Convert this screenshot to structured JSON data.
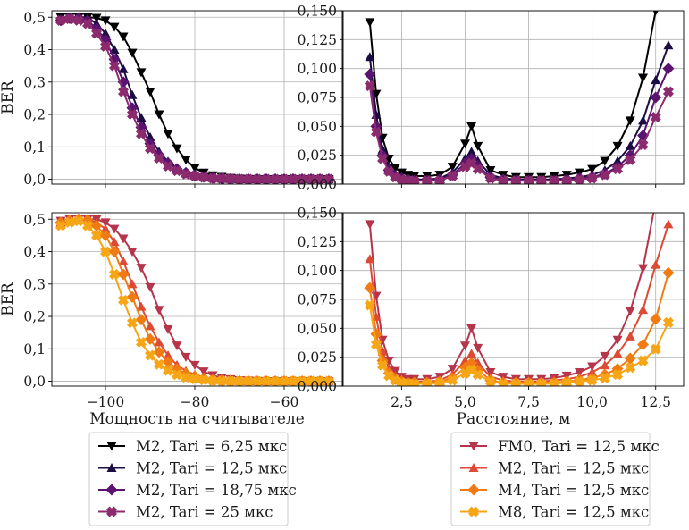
{
  "chart_data": [
    {
      "type": "line",
      "panel": "top-left",
      "xlabel": "",
      "ylabel": "BER",
      "xlim": [
        -112,
        -47
      ],
      "ylim": [
        -0.015,
        0.52
      ],
      "xticks": [
        -100,
        -80,
        -60
      ],
      "xtick_labels": [
        "",
        "",
        ""
      ],
      "yticks": [
        0,
        0.1,
        0.2,
        0.3,
        0.4,
        0.5
      ],
      "ytick_labels": [
        "0,0",
        "0,1",
        "0,2",
        "0,3",
        "0,4",
        "0,5"
      ],
      "grid": true,
      "x": [
        -110,
        -108,
        -106,
        -104,
        -102,
        -100,
        -98,
        -96,
        -94,
        -92,
        -90,
        -88,
        -86,
        -84,
        -82,
        -80,
        -78,
        -76,
        -74,
        -72,
        -70,
        -68,
        -66,
        -64,
        -62,
        -60,
        -58,
        -56,
        -54,
        -52,
        -50
      ],
      "series": [
        {
          "name": "M2, Tari = 6,25 мкс",
          "color": "#000000",
          "marker": "triangle-down",
          "values": [
            0.5,
            0.5,
            0.5,
            0.5,
            0.498,
            0.49,
            0.47,
            0.44,
            0.39,
            0.33,
            0.27,
            0.2,
            0.14,
            0.095,
            0.06,
            0.035,
            0.02,
            0.012,
            0.007,
            0.004,
            0.002,
            0.001,
            0,
            0,
            0,
            0,
            0,
            0,
            0,
            0,
            0
          ]
        },
        {
          "name": "M2, Tari = 12,5 мкс",
          "color": "#1b0c41",
          "marker": "triangle-up",
          "values": [
            0.495,
            0.5,
            0.5,
            0.498,
            0.48,
            0.45,
            0.4,
            0.34,
            0.26,
            0.19,
            0.13,
            0.085,
            0.055,
            0.035,
            0.02,
            0.012,
            0.007,
            0.004,
            0.002,
            0.001,
            0,
            0,
            0,
            0,
            0,
            0,
            0,
            0,
            0,
            0,
            0
          ]
        },
        {
          "name": "M2, Tari = 18,75 мкс",
          "color": "#5a1370",
          "marker": "diamond",
          "values": [
            0.49,
            0.497,
            0.498,
            0.49,
            0.465,
            0.43,
            0.37,
            0.3,
            0.22,
            0.16,
            0.11,
            0.075,
            0.05,
            0.032,
            0.02,
            0.012,
            0.007,
            0.004,
            0.002,
            0.001,
            0,
            0,
            0,
            0,
            0,
            0,
            0,
            0,
            0,
            0,
            0
          ]
        },
        {
          "name": "M2, Tari = 25 мкс",
          "color": "#8c2a6e",
          "marker": "x",
          "values": [
            0.49,
            0.495,
            0.49,
            0.48,
            0.45,
            0.41,
            0.35,
            0.27,
            0.2,
            0.14,
            0.095,
            0.065,
            0.04,
            0.026,
            0.016,
            0.01,
            0.006,
            0.003,
            0.002,
            0.001,
            0,
            0,
            0,
            0,
            0,
            0,
            0,
            0,
            0,
            0,
            0
          ]
        }
      ]
    },
    {
      "type": "line",
      "panel": "top-right",
      "xlabel": "",
      "ylabel": "",
      "xlim": [
        0.2,
        13.6
      ],
      "ylim": [
        0,
        0.15
      ],
      "xticks": [
        2.5,
        5.0,
        7.5,
        10.0,
        12.5
      ],
      "xtick_labels": [
        "",
        "",
        "",
        "",
        ""
      ],
      "yticks": [
        0,
        0.025,
        0.05,
        0.075,
        0.1,
        0.125,
        0.15
      ],
      "ytick_labels": [
        "0,000",
        "0,025",
        "0,050",
        "0,075",
        "0,100",
        "0,125",
        "0,150"
      ],
      "grid": true,
      "x": [
        1.25,
        1.5,
        1.75,
        2.0,
        2.25,
        2.5,
        2.75,
        3.0,
        3.5,
        4.0,
        4.5,
        5.0,
        5.25,
        5.5,
        6.0,
        6.5,
        7.0,
        7.5,
        8.0,
        8.5,
        9.0,
        9.5,
        10.0,
        10.5,
        11.0,
        11.5,
        12.0,
        12.5,
        13.0
      ],
      "series": [
        {
          "name": "M2, Tari = 6,25 мкс",
          "color": "#000000",
          "marker": "triangle-down",
          "values": [
            0.14,
            0.078,
            0.04,
            0.022,
            0.014,
            0.01,
            0.008,
            0.007,
            0.007,
            0.008,
            0.015,
            0.035,
            0.05,
            0.033,
            0.012,
            0.008,
            0.006,
            0.006,
            0.006,
            0.007,
            0.008,
            0.01,
            0.013,
            0.02,
            0.033,
            0.055,
            0.092,
            0.15,
            0.2
          ]
        },
        {
          "name": "M2, Tari = 12,5 мкс",
          "color": "#1b0c41",
          "marker": "triangle-up",
          "values": [
            0.11,
            0.06,
            0.03,
            0.015,
            0.009,
            0.006,
            0.005,
            0.004,
            0.004,
            0.005,
            0.01,
            0.022,
            0.028,
            0.02,
            0.008,
            0.005,
            0.004,
            0.004,
            0.004,
            0.004,
            0.005,
            0.006,
            0.008,
            0.012,
            0.02,
            0.033,
            0.055,
            0.09,
            0.12
          ]
        },
        {
          "name": "M2, Tari = 18,75 мкс",
          "color": "#5a1370",
          "marker": "diamond",
          "values": [
            0.095,
            0.05,
            0.025,
            0.012,
            0.007,
            0.005,
            0.004,
            0.003,
            0.003,
            0.004,
            0.008,
            0.018,
            0.022,
            0.016,
            0.006,
            0.004,
            0.003,
            0.003,
            0.003,
            0.003,
            0.004,
            0.005,
            0.006,
            0.009,
            0.015,
            0.025,
            0.042,
            0.075,
            0.1
          ]
        },
        {
          "name": "M2, Tari = 25 мкс",
          "color": "#8c2a6e",
          "marker": "x",
          "values": [
            0.085,
            0.045,
            0.022,
            0.011,
            0.006,
            0.004,
            0.003,
            0.003,
            0.003,
            0.003,
            0.007,
            0.015,
            0.018,
            0.013,
            0.005,
            0.003,
            0.003,
            0.003,
            0.003,
            0.003,
            0.003,
            0.004,
            0.005,
            0.008,
            0.013,
            0.021,
            0.034,
            0.058,
            0.08
          ]
        }
      ]
    },
    {
      "type": "line",
      "panel": "bottom-left",
      "xlabel": "Мощность на считывателе",
      "ylabel": "BER",
      "xlim": [
        -112,
        -47
      ],
      "ylim": [
        -0.015,
        0.52
      ],
      "xticks": [
        -100,
        -80,
        -60
      ],
      "xtick_labels": [
        "−100",
        "−80",
        "−60"
      ],
      "yticks": [
        0,
        0.1,
        0.2,
        0.3,
        0.4,
        0.5
      ],
      "ytick_labels": [
        "0,0",
        "0,1",
        "0,2",
        "0,3",
        "0,4",
        "0,5"
      ],
      "grid": true,
      "x": [
        -110,
        -108,
        -106,
        -104,
        -102,
        -100,
        -98,
        -96,
        -94,
        -92,
        -90,
        -88,
        -86,
        -84,
        -82,
        -80,
        -78,
        -76,
        -74,
        -72,
        -70,
        -68,
        -66,
        -64,
        -62,
        -60,
        -58,
        -56,
        -54,
        -52,
        -50
      ],
      "series": [
        {
          "name": "FM0, Tari = 12,5 мкс",
          "color": "#b5354b",
          "marker": "triangle-down",
          "values": [
            0.495,
            0.5,
            0.5,
            0.5,
            0.5,
            0.49,
            0.47,
            0.44,
            0.4,
            0.35,
            0.29,
            0.22,
            0.16,
            0.11,
            0.075,
            0.05,
            0.03,
            0.018,
            0.01,
            0.006,
            0.003,
            0.002,
            0.001,
            0,
            0,
            0,
            0,
            0,
            0,
            0,
            0
          ]
        },
        {
          "name": "M2, Tari = 12,5 мкс",
          "color": "#dd4a35",
          "marker": "triangle-up",
          "values": [
            0.49,
            0.5,
            0.5,
            0.5,
            0.49,
            0.47,
            0.43,
            0.37,
            0.3,
            0.23,
            0.17,
            0.12,
            0.08,
            0.05,
            0.032,
            0.02,
            0.012,
            0.007,
            0.004,
            0.002,
            0.001,
            0,
            0,
            0,
            0,
            0,
            0,
            0,
            0,
            0,
            0
          ]
        },
        {
          "name": "M4, Tari = 12,5 мкс",
          "color": "#f07b12",
          "marker": "diamond",
          "values": [
            0.49,
            0.497,
            0.5,
            0.498,
            0.48,
            0.45,
            0.4,
            0.33,
            0.26,
            0.19,
            0.13,
            0.09,
            0.06,
            0.038,
            0.024,
            0.015,
            0.009,
            0.005,
            0.003,
            0.002,
            0.001,
            0,
            0,
            0,
            0,
            0,
            0,
            0,
            0,
            0,
            0
          ]
        },
        {
          "name": "M8, Tari = 12,5 мкс",
          "color": "#f6a514",
          "marker": "x",
          "values": [
            0.48,
            0.49,
            0.495,
            0.48,
            0.45,
            0.4,
            0.33,
            0.25,
            0.18,
            0.12,
            0.08,
            0.052,
            0.033,
            0.02,
            0.012,
            0.007,
            0.004,
            0.002,
            0.001,
            0,
            0,
            0,
            0,
            0,
            0,
            0,
            0,
            0,
            0,
            0,
            0
          ]
        }
      ]
    },
    {
      "type": "line",
      "panel": "bottom-right",
      "xlabel": "Расстояние, м",
      "ylabel": "",
      "xlim": [
        0.2,
        13.6
      ],
      "ylim": [
        0,
        0.15
      ],
      "xticks": [
        2.5,
        5.0,
        7.5,
        10.0,
        12.5
      ],
      "xtick_labels": [
        "2,5",
        "5,0",
        "7,5",
        "10,0",
        "12,5"
      ],
      "yticks": [
        0,
        0.025,
        0.05,
        0.075,
        0.1,
        0.125,
        0.15
      ],
      "ytick_labels": [
        "0,000",
        "0,025",
        "0,050",
        "0,075",
        "0,100",
        "0,125",
        "0,150"
      ],
      "grid": true,
      "x": [
        1.25,
        1.5,
        1.75,
        2.0,
        2.25,
        2.5,
        2.75,
        3.0,
        3.5,
        4.0,
        4.5,
        5.0,
        5.25,
        5.5,
        6.0,
        6.5,
        7.0,
        7.5,
        8.0,
        8.5,
        9.0,
        9.5,
        10.0,
        10.5,
        11.0,
        11.5,
        12.0,
        12.5,
        13.0
      ],
      "series": [
        {
          "name": "FM0, Tari = 12,5 мкс",
          "color": "#b5354b",
          "marker": "triangle-down",
          "values": [
            0.14,
            0.078,
            0.04,
            0.022,
            0.013,
            0.008,
            0.006,
            0.006,
            0.006,
            0.008,
            0.015,
            0.035,
            0.05,
            0.033,
            0.012,
            0.008,
            0.006,
            0.006,
            0.006,
            0.007,
            0.009,
            0.012,
            0.017,
            0.026,
            0.04,
            0.065,
            0.102,
            0.16,
            0.2
          ]
        },
        {
          "name": "M2, Tari = 12,5 мкс",
          "color": "#dd4a35",
          "marker": "triangle-up",
          "values": [
            0.11,
            0.06,
            0.03,
            0.015,
            0.009,
            0.006,
            0.004,
            0.004,
            0.004,
            0.005,
            0.01,
            0.022,
            0.028,
            0.02,
            0.008,
            0.005,
            0.004,
            0.004,
            0.004,
            0.005,
            0.006,
            0.008,
            0.012,
            0.018,
            0.028,
            0.043,
            0.066,
            0.105,
            0.14
          ]
        },
        {
          "name": "M4, Tari = 12,5 мкс",
          "color": "#f07b12",
          "marker": "diamond",
          "values": [
            0.085,
            0.045,
            0.022,
            0.011,
            0.006,
            0.004,
            0.003,
            0.003,
            0.003,
            0.004,
            0.007,
            0.016,
            0.02,
            0.014,
            0.005,
            0.003,
            0.003,
            0.003,
            0.003,
            0.003,
            0.004,
            0.005,
            0.007,
            0.01,
            0.015,
            0.024,
            0.036,
            0.058,
            0.098
          ]
        },
        {
          "name": "M8, Tari = 12,5 мкс",
          "color": "#f6a514",
          "marker": "x",
          "values": [
            0.07,
            0.036,
            0.018,
            0.009,
            0.005,
            0.003,
            0.002,
            0.002,
            0.002,
            0.003,
            0.005,
            0.011,
            0.014,
            0.01,
            0.004,
            0.002,
            0.002,
            0.002,
            0.002,
            0.002,
            0.003,
            0.004,
            0.005,
            0.007,
            0.01,
            0.016,
            0.022,
            0.032,
            0.055
          ]
        }
      ]
    }
  ],
  "legends": [
    {
      "items": [
        {
          "label": "M2, Tari = 6,25 мкс",
          "color": "#000000",
          "marker": "triangle-down"
        },
        {
          "label": "M2, Tari = 12,5 мкс",
          "color": "#1b0c41",
          "marker": "triangle-up"
        },
        {
          "label": "M2, Tari = 18,75 мкс",
          "color": "#5a1370",
          "marker": "diamond"
        },
        {
          "label": "M2, Tari = 25 мкс",
          "color": "#8c2a6e",
          "marker": "x"
        }
      ]
    },
    {
      "items": [
        {
          "label": "FM0, Tari = 12,5 мкс",
          "color": "#b5354b",
          "marker": "triangle-down"
        },
        {
          "label": "M2, Tari = 12,5 мкс",
          "color": "#dd4a35",
          "marker": "triangle-up"
        },
        {
          "label": "M4, Tari = 12,5 мкс",
          "color": "#f07b12",
          "marker": "diamond"
        },
        {
          "label": "M8, Tari = 12,5 мкс",
          "color": "#f6a514",
          "marker": "x"
        }
      ]
    }
  ]
}
